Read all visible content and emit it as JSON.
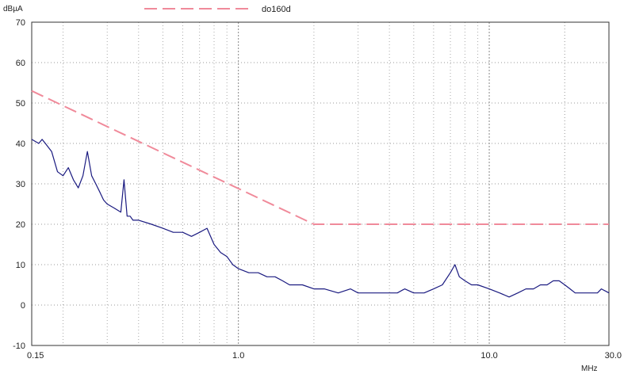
{
  "chart_data": {
    "type": "line",
    "ylabel": "dBµA",
    "xlabel": "MHz",
    "xscale": "log",
    "xlim": [
      0.15,
      30.0
    ],
    "ylim": [
      -10,
      70
    ],
    "x_tick_labels": [
      {
        "value": 0.15,
        "label": "0.15"
      },
      {
        "value": 1.0,
        "label": "1.0"
      },
      {
        "value": 10.0,
        "label": "10.0"
      },
      {
        "value": 30.0,
        "label": "30.0"
      }
    ],
    "y_ticks": [
      -10,
      0,
      10,
      20,
      30,
      40,
      50,
      60,
      70
    ],
    "grid": "dotted",
    "legend_position": "top-center",
    "series": [
      {
        "name": "do160d",
        "style": "dashed",
        "color": "#f08a9a",
        "x": [
          0.15,
          2.0,
          30.0
        ],
        "y": [
          53,
          20,
          20
        ]
      },
      {
        "name": "",
        "style": "solid",
        "color": "#1a1a80",
        "x": [
          0.15,
          0.16,
          0.165,
          0.17,
          0.18,
          0.19,
          0.2,
          0.21,
          0.22,
          0.23,
          0.24,
          0.25,
          0.26,
          0.27,
          0.28,
          0.29,
          0.3,
          0.32,
          0.34,
          0.35,
          0.36,
          0.37,
          0.38,
          0.4,
          0.45,
          0.5,
          0.55,
          0.6,
          0.65,
          0.7,
          0.75,
          0.8,
          0.85,
          0.9,
          0.95,
          1.0,
          1.1,
          1.2,
          1.3,
          1.4,
          1.5,
          1.6,
          1.8,
          2.0,
          2.2,
          2.5,
          2.8,
          3.0,
          3.3,
          3.6,
          4.0,
          4.3,
          4.6,
          5.0,
          5.5,
          6.0,
          6.5,
          7.0,
          7.3,
          7.6,
          8.0,
          8.5,
          9.0,
          10.0,
          11.0,
          12.0,
          13.0,
          14.0,
          15.0,
          16.0,
          17.0,
          18.0,
          19.0,
          20.0,
          21.0,
          22.0,
          23.0,
          25.0,
          27.0,
          28.0,
          30.0
        ],
        "y": [
          41,
          40,
          41,
          40,
          38,
          33,
          32,
          34,
          31,
          29,
          32,
          38,
          32,
          30,
          28,
          26,
          25,
          24,
          23,
          31,
          22,
          22,
          21,
          21,
          20,
          19,
          18,
          18,
          17,
          18,
          19,
          15,
          13,
          12,
          10,
          9,
          8,
          8,
          7,
          7,
          6,
          5,
          5,
          4,
          4,
          3,
          4,
          3,
          3,
          3,
          3,
          3,
          4,
          3,
          3,
          4,
          5,
          8,
          10,
          7,
          6,
          5,
          5,
          4,
          3,
          2,
          3,
          4,
          4,
          5,
          5,
          6,
          6,
          5,
          4,
          3,
          3,
          3,
          3,
          4,
          3
        ]
      }
    ]
  }
}
